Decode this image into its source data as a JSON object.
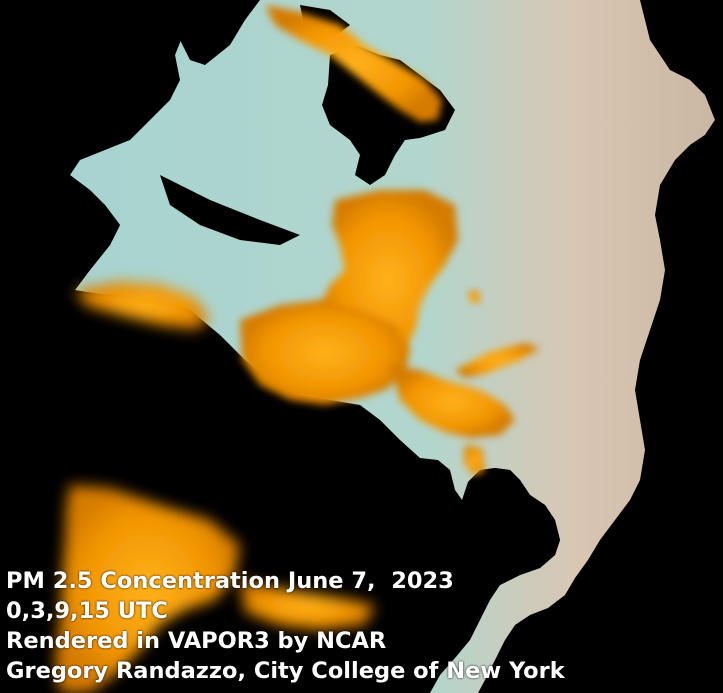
{
  "caption": {
    "line1": "PM 2.5 Concentration June 7,  2023",
    "line2": "0,3,9,15 UTC",
    "line3": "Rendered in VAPOR3 by NCAR",
    "line4": "Gregory Randazzo, City College of New York"
  },
  "colors": {
    "background": "#000000",
    "land_low": "#a9d2cf",
    "land_high": "#dbc3ad",
    "smoke": "#ff9d00"
  }
}
